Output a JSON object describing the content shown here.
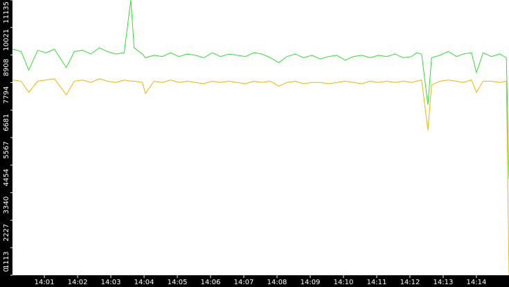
{
  "chart_data": {
    "type": "line",
    "x": [
      0.05,
      0.3,
      0.53,
      0.8,
      1.05,
      1.3,
      1.66,
      1.9,
      2.15,
      2.4,
      2.65,
      2.9,
      3.15,
      3.4,
      3.6,
      3.7,
      3.95,
      4.04,
      4.3,
      4.55,
      4.8,
      5.05,
      5.3,
      5.55,
      5.8,
      6.05,
      6.3,
      6.55,
      6.8,
      7.05,
      7.3,
      7.55,
      7.8,
      8.05,
      8.3,
      8.55,
      8.8,
      9.05,
      9.3,
      9.55,
      9.8,
      10.05,
      10.3,
      10.55,
      10.8,
      11.05,
      11.3,
      11.55,
      11.8,
      12.05,
      12.2,
      12.35,
      12.54,
      12.65,
      12.9,
      13.15,
      13.4,
      13.6,
      13.85,
      14.0,
      14.2,
      14.45,
      14.7,
      14.9,
      14.98
    ],
    "series": [
      {
        "color": "#2ee02e",
        "values": [
          9150,
          9050,
          8300,
          9100,
          9000,
          9150,
          8400,
          9050,
          9100,
          8950,
          9200,
          9050,
          8950,
          9000,
          11135,
          9200,
          8950,
          8800,
          8900,
          8850,
          9000,
          8850,
          8950,
          8900,
          8800,
          9000,
          8850,
          8950,
          8900,
          8850,
          9000,
          8950,
          8800,
          8600,
          8850,
          8950,
          8800,
          8900,
          8750,
          8850,
          8900,
          8700,
          8850,
          8900,
          8800,
          8900,
          8850,
          8950,
          8800,
          8850,
          9000,
          8950,
          6900,
          8800,
          8900,
          9050,
          8850,
          8950,
          9000,
          8200,
          9000,
          8850,
          8950,
          8800,
          3900
        ]
      },
      {
        "color": "#f0b400",
        "values": [
          7900,
          7850,
          7400,
          7850,
          7900,
          7950,
          7300,
          7850,
          7900,
          7800,
          7950,
          7850,
          7800,
          7900,
          7850,
          7850,
          7800,
          7350,
          7850,
          7800,
          7900,
          7800,
          7850,
          7800,
          7750,
          7850,
          7800,
          7850,
          7800,
          7750,
          7850,
          7800,
          7850,
          7650,
          7800,
          7850,
          7750,
          7800,
          7800,
          7750,
          7800,
          7850,
          7800,
          7750,
          7850,
          7800,
          7850,
          7800,
          7850,
          7800,
          7850,
          7900,
          5870,
          7700,
          7850,
          7900,
          7850,
          7800,
          7900,
          7400,
          7850,
          7850,
          7800,
          7850,
          0
        ]
      }
    ],
    "xlim": [
      0.04,
      14.98
    ],
    "xticks": [
      {
        "value": 1,
        "label": "14:01"
      },
      {
        "value": 2,
        "label": "14:02"
      },
      {
        "value": 3,
        "label": "14:03"
      },
      {
        "value": 4,
        "label": "14:04"
      },
      {
        "value": 5,
        "label": "14:05"
      },
      {
        "value": 6,
        "label": "14:06"
      },
      {
        "value": 7,
        "label": "14:07"
      },
      {
        "value": 8,
        "label": "14:08"
      },
      {
        "value": 9,
        "label": "14:09"
      },
      {
        "value": 10,
        "label": "14:10"
      },
      {
        "value": 11,
        "label": "14:11"
      },
      {
        "value": 12,
        "label": "14:12"
      },
      {
        "value": 13,
        "label": "14:13"
      },
      {
        "value": 14,
        "label": "14:14"
      }
    ],
    "ylim": [
      0,
      11135
    ],
    "yticks": [
      0,
      1113,
      2227,
      3340,
      4454,
      5567,
      6681,
      7794,
      8908,
      10021,
      11135
    ]
  }
}
